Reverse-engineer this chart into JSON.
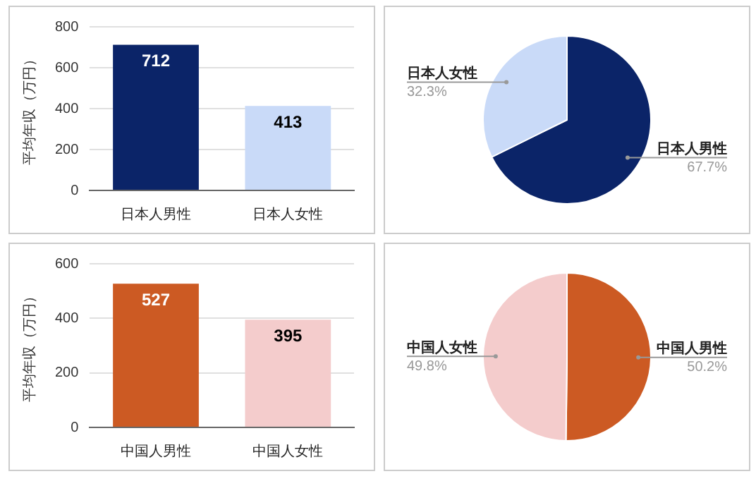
{
  "chart_data": [
    {
      "type": "bar",
      "ylabel": "平均年収（万円）",
      "categories": [
        "日本人男性",
        "日本人女性"
      ],
      "values": [
        712,
        413
      ],
      "colors": [
        "#0b2468",
        "#c9daf8"
      ],
      "ylim": [
        0,
        800
      ],
      "yticks": [
        0,
        200,
        400,
        600,
        800
      ],
      "grid": "y",
      "legend": false,
      "data_labels": true
    },
    {
      "type": "pie",
      "categories": [
        "日本人男性",
        "日本人女性"
      ],
      "values": [
        67.7,
        32.3
      ],
      "colors": [
        "#0b2468",
        "#c9daf8"
      ],
      "value_labels": [
        "67.7%",
        "32.3%"
      ],
      "legend": false
    },
    {
      "type": "bar",
      "ylabel": "平均年収（万円）",
      "categories": [
        "中国人男性",
        "中国人女性"
      ],
      "values": [
        527,
        395
      ],
      "colors": [
        "#cc5a23",
        "#f4cccc"
      ],
      "ylim": [
        0,
        600
      ],
      "yticks": [
        0,
        200,
        400,
        600
      ],
      "grid": "y",
      "legend": false,
      "data_labels": true
    },
    {
      "type": "pie",
      "categories": [
        "中国人男性",
        "中国人女性"
      ],
      "values": [
        50.2,
        49.8
      ],
      "colors": [
        "#cc5a23",
        "#f4cccc"
      ],
      "value_labels": [
        "50.2%",
        "49.8%"
      ],
      "legend": false
    }
  ]
}
